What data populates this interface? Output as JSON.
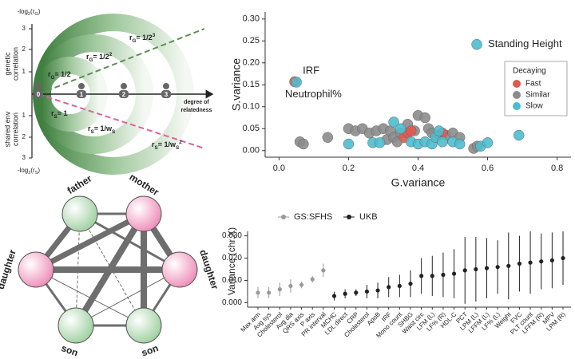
{
  "diagram": {
    "axis_top": {
      "parts": [
        {
          "t": "-log"
        },
        {
          "sub": "2"
        },
        {
          "t": "(r"
        },
        {
          "sub": "G"
        },
        {
          "t": ")"
        }
      ]
    },
    "axis_bottom": {
      "parts": [
        {
          "t": "-log"
        },
        {
          "sub": "2"
        },
        {
          "t": "(r"
        },
        {
          "sub": "S"
        },
        {
          "t": ")"
        }
      ]
    },
    "label_top": [
      "genetic",
      "correlation"
    ],
    "label_bottom": [
      "shared env",
      "correlation"
    ],
    "x_axis_label": [
      "degree of",
      "relatedness"
    ],
    "ticks_top": [
      3,
      2,
      1
    ],
    "ticks_bottom": [
      1,
      2,
      3
    ],
    "nodes": [
      0,
      1,
      2,
      3
    ],
    "rg_labels": [
      {
        "parts": [
          {
            "t": "r"
          },
          {
            "sub": "G"
          },
          {
            "t": "= 1/2"
          }
        ]
      },
      {
        "parts": [
          {
            "t": "r"
          },
          {
            "sub": "G"
          },
          {
            "t": "= 1/2"
          },
          {
            "sup": "2"
          }
        ]
      },
      {
        "parts": [
          {
            "t": "r"
          },
          {
            "sub": "G"
          },
          {
            "t": "= 1/2"
          },
          {
            "sup": "3"
          }
        ]
      }
    ],
    "rs_labels": [
      {
        "parts": [
          {
            "t": "r"
          },
          {
            "sub": "S"
          },
          {
            "t": "= 1"
          }
        ]
      },
      {
        "parts": [
          {
            "t": "r"
          },
          {
            "sub": "S"
          },
          {
            "t": "= 1/w"
          },
          {
            "sub": "S"
          }
        ]
      },
      {
        "parts": [
          {
            "t": "r"
          },
          {
            "sub": "S"
          },
          {
            "t": "= 1/w"
          },
          {
            "sub": "S"
          },
          {
            "sup": "2"
          }
        ]
      }
    ]
  },
  "network": {
    "nodes": [
      {
        "label": "father"
      },
      {
        "label": "mother"
      },
      {
        "label": "daughter"
      },
      {
        "label": "daughter"
      },
      {
        "label": "son"
      },
      {
        "label": "son"
      }
    ]
  },
  "chart_data": [
    {
      "type": "scatter",
      "x_label": "G.variance",
      "y_label": "S.variance",
      "xlim": [
        -0.04,
        0.84
      ],
      "ylim": [
        -0.015,
        0.316
      ],
      "xticks": [
        {
          "value": 0,
          "label": "0.0"
        },
        0.2,
        0.4,
        0.6,
        0.8
      ],
      "yticks": [
        {
          "value": 0,
          "label": "0.00"
        },
        0.05,
        {
          "value": 0.1,
          "label": "0.10"
        },
        0.15,
        {
          "value": 0.2,
          "label": "0.20"
        },
        0.25,
        {
          "value": 0.3,
          "label": "0.30"
        }
      ],
      "legend_title": "Decaying",
      "legend": "right",
      "series": [
        {
          "name": "Fast",
          "color": "#e05a4e",
          "x": [
            0.045,
            0.36,
            0.37,
            0.38,
            0.46,
            0.47
          ],
          "values": [
            0.157,
            0.03,
            0.04,
            0.045,
            0.035,
            0.04
          ]
        },
        {
          "name": "Similar",
          "color": "#8c8c8c",
          "x": [
            0.06,
            0.07,
            0.14,
            0.2,
            0.22,
            0.24,
            0.26,
            0.28,
            0.3,
            0.31,
            0.32,
            0.33,
            0.34,
            0.35,
            0.37,
            0.39,
            0.4,
            0.42,
            0.43,
            0.44,
            0.48,
            0.5,
            0.52,
            0.56,
            0.57
          ],
          "values": [
            0.02,
            0.015,
            0.03,
            0.05,
            0.045,
            0.05,
            0.04,
            0.045,
            0.05,
            0.025,
            0.045,
            0.03,
            0.02,
            0.04,
            0.06,
            0.045,
            0.08,
            0.075,
            0.05,
            0.04,
            0.035,
            0.04,
            0.03,
            0.005,
            0.01
          ]
        },
        {
          "name": "Slow",
          "color": "#4dbccd",
          "x": [
            0.05,
            0.569,
            0.2,
            0.27,
            0.29,
            0.33,
            0.35,
            0.38,
            0.4,
            0.42,
            0.44,
            0.45,
            0.46,
            0.47,
            0.5,
            0.52,
            0.58,
            0.6,
            0.69
          ],
          "values": [
            0.156,
            0.242,
            0.015,
            0.018,
            0.018,
            0.065,
            0.05,
            0.02,
            0.015,
            0.02,
            0.015,
            0.03,
            0.045,
            0.02,
            0.02,
            0.015,
            0.01,
            0.018,
            0.035
          ]
        }
      ],
      "annotations": [
        {
          "text": "Standing Height",
          "x": 0.569,
          "y": 0.242
        },
        {
          "text": "IRF",
          "x": 0.05,
          "y": 0.156
        },
        {
          "text": "Neutrophil%",
          "x": 0.045,
          "y": 0.157
        }
      ]
    },
    {
      "type": "dot",
      "y_label": "Variance (chr.X)",
      "ylim": [
        -0.002,
        0.032
      ],
      "yticks": [
        {
          "value": 0,
          "label": "0.000"
        },
        {
          "value": 0.01,
          "label": "0.010"
        },
        {
          "value": 0.02,
          "label": "0.020"
        },
        {
          "value": 0.03,
          "label": "0.030"
        }
      ],
      "categories": [
        "Max arm",
        "Avg sys",
        "Cholesterol",
        "Avg dia",
        "QRS axis",
        "P axis",
        "PR interval",
        "MCHC",
        "LDL direct",
        "CRP",
        "Cholesterol",
        "ApoB",
        "IRF",
        "Mono count",
        "SHBG",
        "Waist circ",
        "LFM (L)",
        "LF% (R)",
        "HDL-C",
        "PCT",
        "LPM (L)",
        "LFFM (L)",
        "LF% (L)",
        "Weight",
        "FVC",
        "PLT count",
        "LFFM (R)",
        "MPV",
        "LPM (R)"
      ],
      "series": [
        {
          "name": "GS:SFHS",
          "color": "#999999",
          "values": [
            0.0045,
            0.0045,
            0.006,
            0.0075,
            0.008,
            0.0105,
            0.0145,
            null,
            null,
            null,
            null,
            null,
            null,
            null,
            null,
            null,
            null,
            null,
            null,
            null,
            null,
            null,
            null,
            null,
            null,
            null,
            null,
            null,
            null
          ],
          "errors": [
            0.0025,
            0.0025,
            0.003,
            0.003,
            0.0015,
            0.0015,
            0.003,
            null,
            null,
            null,
            null,
            null,
            null,
            null,
            null,
            null,
            null,
            null,
            null,
            null,
            null,
            null,
            null,
            null,
            null,
            null,
            null,
            null,
            null
          ]
        },
        {
          "name": "UKB",
          "color": "#222222",
          "values": [
            null,
            null,
            null,
            null,
            null,
            null,
            null,
            0.003,
            0.004,
            0.0045,
            0.005,
            0.0055,
            0.007,
            0.0075,
            0.0085,
            0.012,
            0.012,
            0.0125,
            0.013,
            0.0145,
            0.015,
            0.0155,
            0.016,
            0.0165,
            0.0175,
            0.018,
            0.0185,
            0.019,
            0.02
          ],
          "errors": [
            null,
            null,
            null,
            null,
            null,
            null,
            null,
            0.002,
            0.002,
            0.0015,
            0.003,
            0.0035,
            0.0045,
            0.005,
            0.006,
            0.008,
            0.009,
            0.01,
            0.011,
            0.015,
            0.0145,
            0.0135,
            0.012,
            0.015,
            0.0125,
            0.014,
            0.0125,
            0.0125,
            0.012
          ]
        }
      ]
    }
  ]
}
